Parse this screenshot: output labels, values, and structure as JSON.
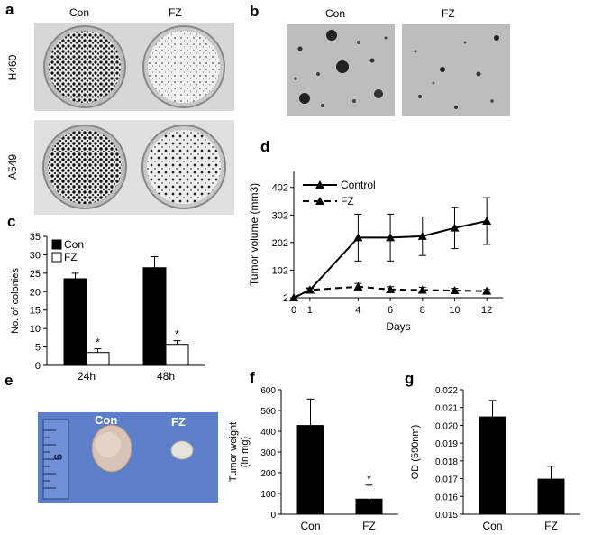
{
  "panels": {
    "a": {
      "letter": "a",
      "col_labels": [
        "Con",
        "FZ"
      ],
      "row_labels": [
        "H460",
        "A549"
      ]
    },
    "b": {
      "letter": "b",
      "col_labels": [
        "Con",
        "FZ"
      ]
    },
    "e": {
      "letter": "e",
      "photo_labels": [
        "Con",
        "FZ"
      ]
    }
  },
  "chart_data": [
    {
      "panel": "c",
      "type": "bar",
      "ylabel": "No. of colonies",
      "categories": [
        "24h",
        "48h"
      ],
      "ylim": [
        0,
        35
      ],
      "yticks": [
        0,
        5,
        10,
        15,
        20,
        25,
        30,
        35
      ],
      "legend": "top-left",
      "series": [
        {
          "name": "Con",
          "values": [
            23.5,
            26.5
          ],
          "errors": [
            1.5,
            3.0
          ],
          "fill": "#000000"
        },
        {
          "name": "FZ",
          "values": [
            3.5,
            5.7
          ],
          "errors": [
            1.0,
            1.0
          ],
          "fill": "#ffffff"
        }
      ],
      "annotations": [
        "*",
        "*"
      ]
    },
    {
      "panel": "d",
      "type": "line",
      "xlabel": "Days",
      "ylabel": "Tumor volume (mm3)",
      "x": [
        0,
        1,
        4,
        6,
        8,
        10,
        12
      ],
      "ytick_labels": [
        "2",
        "102",
        "202",
        "302",
        "402"
      ],
      "ylim": [
        2,
        460
      ],
      "legend": "top-left",
      "series": [
        {
          "name": "Control",
          "style": "solid",
          "values": [
            2,
            30,
            220,
            220,
            225,
            255,
            280
          ],
          "errors": [
            0,
            8,
            85,
            85,
            70,
            75,
            85
          ]
        },
        {
          "name": "FZ",
          "style": "dashed",
          "values": [
            2,
            30,
            42,
            32,
            30,
            28,
            26
          ],
          "errors": [
            0,
            5,
            12,
            10,
            10,
            8,
            6
          ]
        }
      ]
    },
    {
      "panel": "f",
      "type": "bar",
      "ylabel": "Tumor weight\n(in mg)",
      "categories": [
        "Con",
        "FZ"
      ],
      "ylim": [
        0,
        600
      ],
      "yticks": [
        0,
        100,
        200,
        300,
        400,
        500,
        600
      ],
      "values": [
        430,
        75
      ],
      "errors": [
        125,
        65
      ],
      "annotations": [
        "",
        "*"
      ]
    },
    {
      "panel": "g",
      "type": "bar",
      "ylabel": "OD (590nm)",
      "categories": [
        "Con",
        "FZ"
      ],
      "ylim": [
        0.015,
        0.022
      ],
      "yticks": [
        0.015,
        0.016,
        0.017,
        0.018,
        0.019,
        0.02,
        0.021,
        0.022
      ],
      "ytick_labels": [
        "0.015",
        "0.016",
        "0.017",
        "0.018",
        "0.019",
        "0.020",
        "0.021",
        "0.022"
      ],
      "values": [
        0.0205,
        0.017
      ],
      "errors": [
        0.0009,
        0.0007
      ]
    }
  ],
  "letters": {
    "c": "c",
    "d": "d",
    "f": "f",
    "g": "g"
  }
}
